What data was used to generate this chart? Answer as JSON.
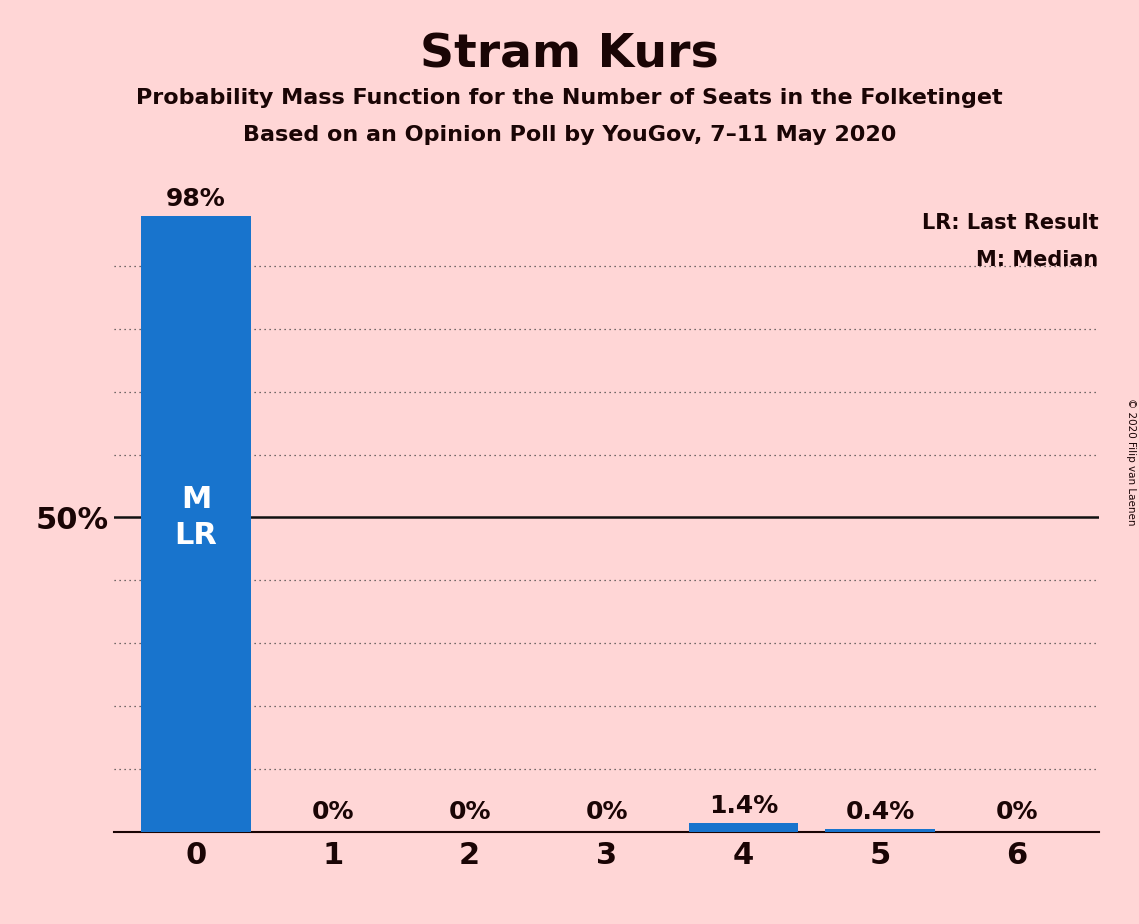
{
  "title": "Stram Kurs",
  "subtitle1": "Probability Mass Function for the Number of Seats in the Folketinget",
  "subtitle2": "Based on an Opinion Poll by YouGov, 7–11 May 2020",
  "copyright": "© 2020 Filip van Laenen",
  "categories": [
    0,
    1,
    2,
    3,
    4,
    5,
    6
  ],
  "values": [
    0.98,
    0.0,
    0.0,
    0.0,
    0.014,
    0.004,
    0.0
  ],
  "bar_labels": [
    "98%",
    "0%",
    "0%",
    "0%",
    "1.4%",
    "0.4%",
    "0%"
  ],
  "bar_color": "#1874CD",
  "background_color": "#FFD6D6",
  "text_color": "#1a0505",
  "fifty_pct_label": "50%",
  "legend_lr": "LR: Last Result",
  "legend_m": "M: Median",
  "ylim": [
    0,
    1.0
  ],
  "ylabel_50_pct": 0.5,
  "dotted_grid_levels": [
    0.1,
    0.2,
    0.3,
    0.4,
    0.6,
    0.7,
    0.8,
    0.9
  ],
  "solid_grid_level": 0.5
}
